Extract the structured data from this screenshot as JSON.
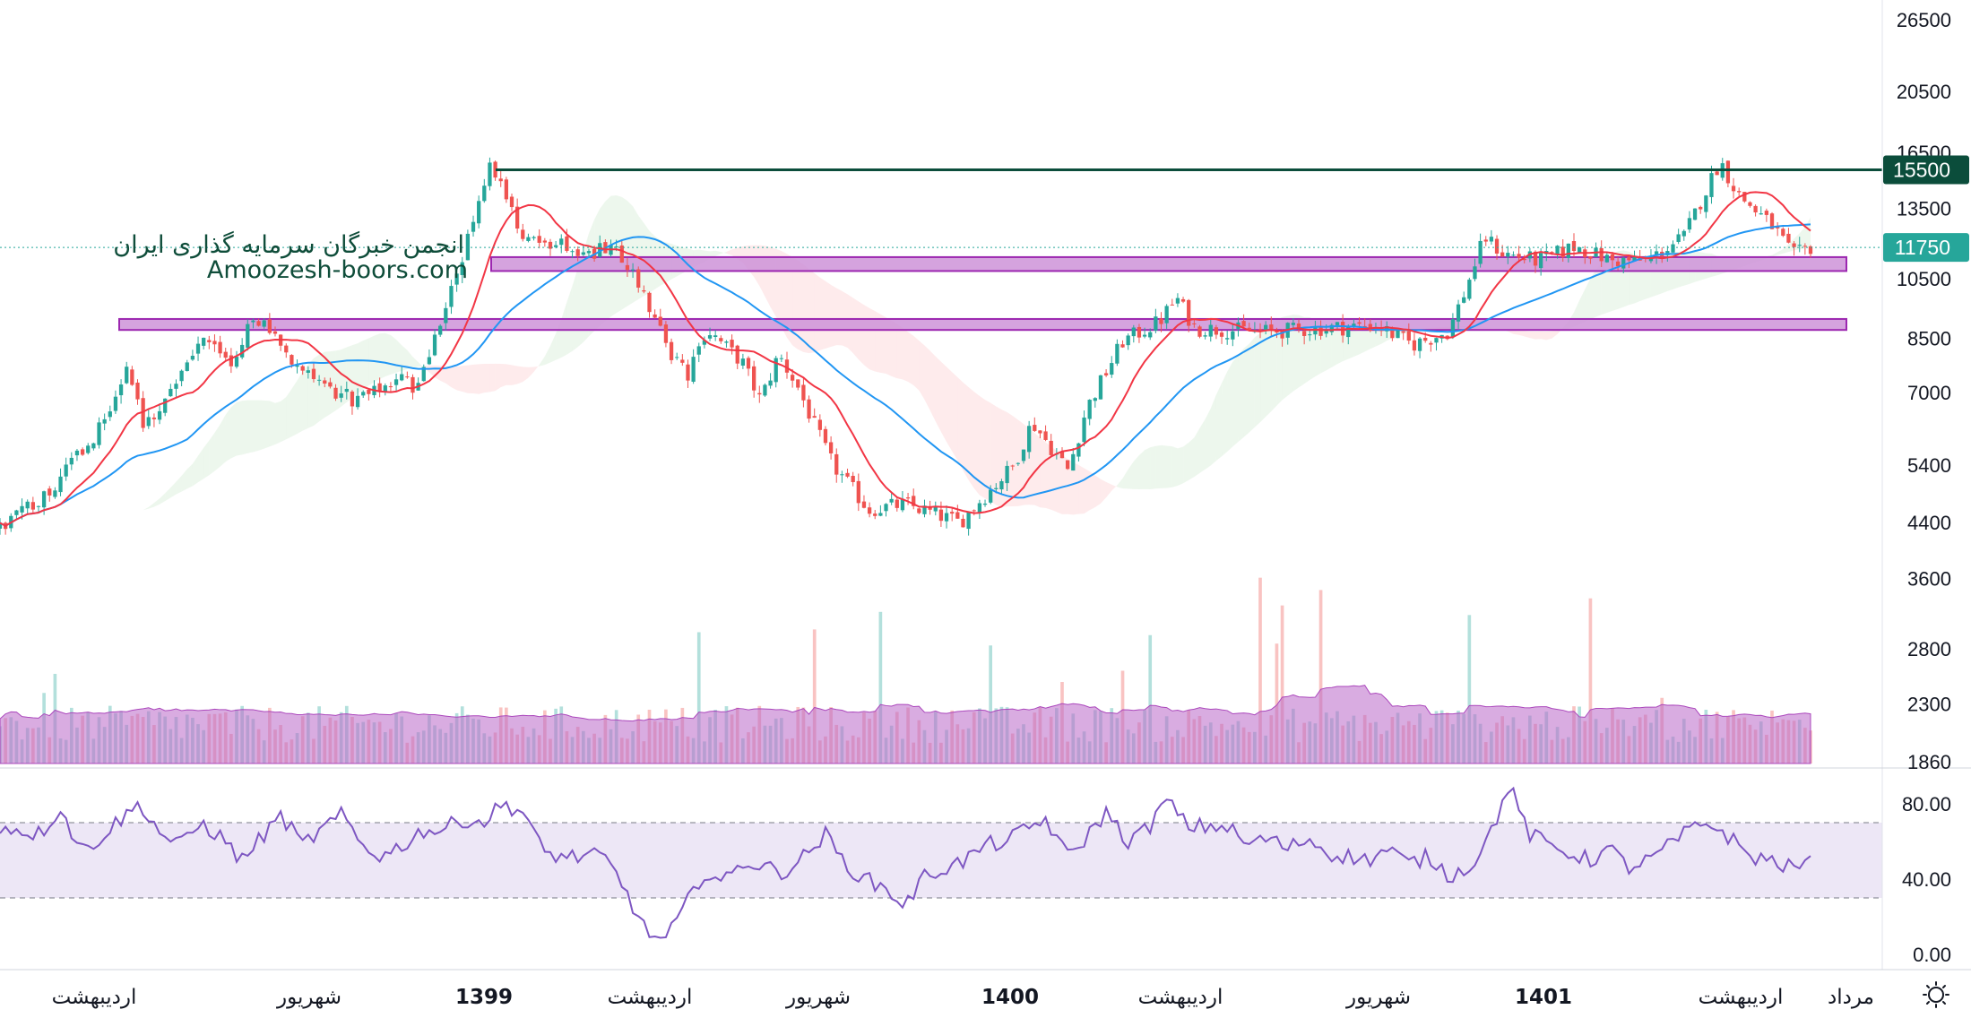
{
  "watermark": {
    "line1": "انجمن خبرگان سرمایه گذاری ایران",
    "line2": "Amoozesh-boors.com"
  },
  "settings_icon": "sun-gear-icon",
  "colors": {
    "up": "#26a69a",
    "down": "#ef5350",
    "ma_fast": "#f23645",
    "ma_slow": "#2196f3",
    "resistance": "#0b4d3b",
    "zone_fill": "#ce93d8",
    "zone_stroke": "#9c27b0",
    "rsi_line": "#7e57c2",
    "rsi_band": "#ede7f6",
    "volume_ma": "#ba68c8",
    "last_price_bg": "#26a69a"
  },
  "chart_data": [
    {
      "type": "candlestick",
      "title": "",
      "y_scale": "log",
      "ylim": [
        1860,
        26500
      ],
      "y_ticks": [
        26500,
        20500,
        16500,
        13500,
        10500,
        8500,
        7000,
        5400,
        4400,
        3600,
        2800,
        2300,
        1860
      ],
      "x_ticks": [
        "اردیبهشت",
        "شهریور",
        "1399",
        "اردیبهشت",
        "شهریور",
        "1400",
        "اردیبهشت",
        "شهریور",
        "1401",
        "اردیبهشت",
        "مرداد"
      ],
      "x_ticks_bold": [
        "1399",
        "1400",
        "1401"
      ],
      "close_path": [
        {
          "x": 0,
          "y": 4300
        },
        {
          "x": 3,
          "y": 5000
        },
        {
          "x": 6,
          "y": 6400
        },
        {
          "x": 7,
          "y": 7800
        },
        {
          "x": 8,
          "y": 6200
        },
        {
          "x": 9,
          "y": 6800
        },
        {
          "x": 11,
          "y": 8500
        },
        {
          "x": 13,
          "y": 7700
        },
        {
          "x": 14,
          "y": 9200
        },
        {
          "x": 16,
          "y": 8000
        },
        {
          "x": 18,
          "y": 7000
        },
        {
          "x": 20,
          "y": 6800
        },
        {
          "x": 22,
          "y": 7400
        },
        {
          "x": 23,
          "y": 7100
        },
        {
          "x": 25,
          "y": 10200
        },
        {
          "x": 26,
          "y": 12500
        },
        {
          "x": 27,
          "y": 16000
        },
        {
          "x": 28,
          "y": 14200
        },
        {
          "x": 29,
          "y": 12000
        },
        {
          "x": 34,
          "y": 11500
        },
        {
          "x": 35,
          "y": 10800
        },
        {
          "x": 37,
          "y": 8100
        },
        {
          "x": 38,
          "y": 7400
        },
        {
          "x": 39,
          "y": 8800
        },
        {
          "x": 41,
          "y": 7800
        },
        {
          "x": 42,
          "y": 6800
        },
        {
          "x": 43,
          "y": 8000
        },
        {
          "x": 44,
          "y": 7200
        },
        {
          "x": 45,
          "y": 6200
        },
        {
          "x": 46,
          "y": 5400
        },
        {
          "x": 48,
          "y": 4600
        },
        {
          "x": 50,
          "y": 4700
        },
        {
          "x": 53,
          "y": 4400
        },
        {
          "x": 56,
          "y": 5400
        },
        {
          "x": 57,
          "y": 6300
        },
        {
          "x": 59,
          "y": 5300
        },
        {
          "x": 60,
          "y": 6600
        },
        {
          "x": 62,
          "y": 8400
        },
        {
          "x": 64,
          "y": 9000
        },
        {
          "x": 65,
          "y": 9800
        },
        {
          "x": 66,
          "y": 8800
        },
        {
          "x": 70,
          "y": 8700
        },
        {
          "x": 76,
          "y": 8900
        },
        {
          "x": 78,
          "y": 8300
        },
        {
          "x": 80,
          "y": 8700
        },
        {
          "x": 81,
          "y": 10200
        },
        {
          "x": 82,
          "y": 12200
        },
        {
          "x": 83,
          "y": 11500
        },
        {
          "x": 85,
          "y": 11200
        },
        {
          "x": 87,
          "y": 11800
        },
        {
          "x": 89,
          "y": 11200
        },
        {
          "x": 91,
          "y": 11200
        },
        {
          "x": 93,
          "y": 12200
        },
        {
          "x": 94,
          "y": 14000
        },
        {
          "x": 95,
          "y": 16000
        },
        {
          "x": 96,
          "y": 14200
        },
        {
          "x": 98,
          "y": 12600
        },
        {
          "x": 99,
          "y": 11400
        },
        {
          "x": 100,
          "y": 11750
        }
      ],
      "horizontal_levels": [
        {
          "label": "15500",
          "value": 15500
        }
      ],
      "zones": [
        {
          "low": 10800,
          "high": 11350
        },
        {
          "low": 8750,
          "high": 9100
        }
      ],
      "last_price": {
        "label": "11750",
        "value": 11750
      }
    },
    {
      "type": "line",
      "title": "",
      "ylim": [
        0,
        100
      ],
      "y_ticks": [
        "80.00",
        "40.00",
        "0.00"
      ],
      "bands": [
        30,
        70
      ],
      "series": [
        {
          "values": [
            68,
            66,
            64,
            78,
            55,
            62,
            72,
            80,
            64,
            58,
            70,
            62,
            50,
            62,
            74,
            58,
            66,
            74,
            58,
            52,
            58,
            66,
            66,
            72,
            70,
            80,
            76,
            54,
            52,
            52,
            52,
            36,
            14,
            6,
            24,
            44,
            38,
            50,
            46,
            44,
            52,
            64,
            48,
            40,
            35,
            26,
            42,
            46,
            50,
            58,
            60,
            66,
            72,
            52,
            62,
            76,
            60,
            66,
            82,
            68,
            68,
            68,
            58,
            62,
            56,
            62,
            54,
            52,
            50,
            56,
            48,
            52,
            42,
            46,
            62,
            90,
            64,
            58,
            54,
            50,
            56,
            46,
            50,
            58,
            66,
            70,
            62,
            52,
            50,
            46,
            48
          ]
        }
      ]
    }
  ]
}
